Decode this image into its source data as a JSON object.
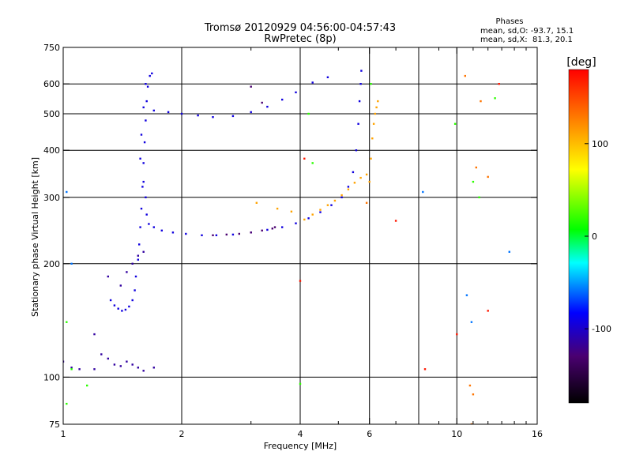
{
  "chart_data": {
    "type": "scatter",
    "title": "Tromsø 20120929 04:56:00-04:57:43",
    "subtitle": "RwPretec (8p)",
    "xlabel": "Frequency [MHz]",
    "ylabel": "Stationary phase Virtual Height [km]",
    "x_scale": "log",
    "y_scale": "log",
    "xlim": [
      1,
      16
    ],
    "ylim": [
      75,
      750
    ],
    "x_ticks": [
      1,
      2,
      4,
      6,
      10,
      16
    ],
    "x_tick_labels": [
      "1",
      "2",
      "4",
      "6",
      "10",
      "16"
    ],
    "x_grid_lines": [
      2,
      4,
      6,
      8,
      10
    ],
    "x_minor_ticks": [
      3,
      5,
      7,
      8,
      9,
      11,
      12,
      13,
      14,
      15
    ],
    "y_ticks": [
      75,
      100,
      200,
      300,
      400,
      500,
      600,
      750
    ],
    "y_tick_labels": [
      "75",
      "100",
      "200",
      "300",
      "400",
      "500",
      "600",
      "750"
    ],
    "y_grid_lines": [
      100,
      200,
      300,
      400,
      500,
      600
    ],
    "grid": true,
    "info_block": {
      "heading": "Phases",
      "line1": "mean, sd,O: -93.7, 15.1",
      "line2": "mean, sd,X:  81.3, 20.1"
    },
    "colorbar": {
      "label": "[deg]",
      "range": [
        -180,
        180
      ],
      "ticks": [
        100,
        0,
        -100
      ],
      "tick_labels": [
        "100",
        "0",
        "-100"
      ],
      "placement": "right",
      "colors": [
        "#000000",
        "#4a0070",
        "#0000ff",
        "#00ffff",
        "#00ff00",
        "#ffff00",
        "#ff8000",
        "#ff0000"
      ]
    },
    "series": [
      {
        "color_value": -95,
        "points": [
          [
            1.32,
            160
          ],
          [
            1.35,
            155
          ],
          [
            1.38,
            152
          ],
          [
            1.41,
            150
          ],
          [
            1.44,
            151
          ],
          [
            1.47,
            154
          ],
          [
            1.5,
            160
          ],
          [
            1.52,
            170
          ],
          [
            1.53,
            185
          ],
          [
            1.55,
            205
          ],
          [
            1.56,
            225
          ],
          [
            1.57,
            250
          ],
          [
            1.58,
            280
          ],
          [
            1.59,
            320
          ],
          [
            1.6,
            370
          ],
          [
            1.61,
            420
          ],
          [
            1.62,
            480
          ],
          [
            1.63,
            540
          ],
          [
            1.64,
            590
          ],
          [
            1.66,
            630
          ],
          [
            1.68,
            640
          ],
          [
            1.62,
            600
          ],
          [
            1.6,
            520
          ],
          [
            1.58,
            440
          ],
          [
            1.57,
            380
          ],
          [
            1.6,
            330
          ],
          [
            1.62,
            300
          ],
          [
            1.63,
            270
          ],
          [
            1.65,
            255
          ],
          [
            1.7,
            250
          ],
          [
            1.78,
            245
          ],
          [
            1.9,
            242
          ],
          [
            2.05,
            240
          ],
          [
            2.25,
            238
          ],
          [
            2.45,
            238
          ],
          [
            2.7,
            239
          ],
          [
            3.0,
            242
          ],
          [
            3.3,
            246
          ],
          [
            3.6,
            250
          ],
          [
            3.9,
            256
          ],
          [
            4.2,
            264
          ],
          [
            4.5,
            274
          ],
          [
            4.8,
            286
          ],
          [
            5.1,
            300
          ],
          [
            5.3,
            320
          ],
          [
            5.45,
            350
          ],
          [
            5.55,
            400
          ],
          [
            5.62,
            470
          ],
          [
            5.66,
            540
          ],
          [
            5.7,
            600
          ],
          [
            5.72,
            650
          ],
          [
            1.7,
            510
          ],
          [
            1.85,
            505
          ],
          [
            2.0,
            500
          ],
          [
            2.2,
            495
          ],
          [
            2.4,
            490
          ],
          [
            2.7,
            493
          ],
          [
            3.0,
            505
          ],
          [
            3.3,
            522
          ],
          [
            3.6,
            545
          ],
          [
            3.9,
            570
          ],
          [
            4.3,
            605
          ],
          [
            4.7,
            625
          ]
        ]
      },
      {
        "color_value": -115,
        "points": [
          [
            1.0,
            110
          ],
          [
            1.05,
            106
          ],
          [
            1.1,
            105
          ],
          [
            1.2,
            105
          ],
          [
            1.25,
            115
          ],
          [
            1.3,
            112
          ],
          [
            1.35,
            108
          ],
          [
            1.4,
            107
          ],
          [
            1.45,
            110
          ],
          [
            1.5,
            108
          ],
          [
            1.55,
            106
          ],
          [
            1.6,
            104
          ],
          [
            1.7,
            106
          ],
          [
            1.2,
            130
          ],
          [
            1.3,
            185
          ],
          [
            1.4,
            175
          ],
          [
            1.45,
            190
          ],
          [
            1.5,
            200
          ],
          [
            1.55,
            210
          ],
          [
            1.6,
            215
          ]
        ]
      },
      {
        "color_value": -130,
        "points": [
          [
            2.4,
            238
          ],
          [
            2.6,
            239
          ],
          [
            2.8,
            240
          ],
          [
            3.0,
            242
          ],
          [
            3.2,
            245
          ],
          [
            3.4,
            248
          ],
          [
            3.0,
            590
          ],
          [
            3.2,
            535
          ],
          [
            3.45,
            250
          ]
        ]
      },
      {
        "color_value": 110,
        "points": [
          [
            4.1,
            262
          ],
          [
            4.3,
            270
          ],
          [
            4.5,
            278
          ],
          [
            4.7,
            286
          ],
          [
            4.9,
            294
          ],
          [
            5.1,
            304
          ],
          [
            5.3,
            315
          ],
          [
            5.5,
            328
          ],
          [
            5.7,
            338
          ],
          [
            5.9,
            345
          ],
          [
            6.0,
            330
          ],
          [
            6.05,
            380
          ],
          [
            6.1,
            430
          ],
          [
            6.15,
            470
          ],
          [
            6.2,
            500
          ],
          [
            6.25,
            520
          ],
          [
            6.3,
            540
          ],
          [
            3.1,
            290
          ],
          [
            3.5,
            280
          ],
          [
            3.8,
            275
          ]
        ]
      },
      {
        "color_value": 130,
        "points": [
          [
            10.5,
            630
          ],
          [
            11.5,
            540
          ],
          [
            10.8,
            95
          ],
          [
            11.0,
            90
          ],
          [
            10.9,
            75
          ],
          [
            11.2,
            360
          ],
          [
            12.0,
            340
          ],
          [
            5.9,
            290
          ]
        ]
      },
      {
        "color_value": 20,
        "points": [
          [
            1.02,
            140
          ],
          [
            1.02,
            85
          ],
          [
            1.05,
            105
          ],
          [
            1.15,
            95
          ],
          [
            4.0,
            96
          ],
          [
            4.2,
            500
          ],
          [
            4.3,
            370
          ],
          [
            9.9,
            470
          ],
          [
            11.0,
            330
          ],
          [
            11.4,
            300
          ],
          [
            12.5,
            550
          ],
          [
            6.05,
            600
          ]
        ]
      },
      {
        "color_value": 170,
        "points": [
          [
            12.0,
            150
          ],
          [
            4.0,
            180
          ],
          [
            4.1,
            380
          ],
          [
            8.3,
            105
          ],
          [
            10.0,
            130
          ],
          [
            7.0,
            260
          ],
          [
            12.8,
            600
          ]
        ]
      },
      {
        "color_value": -60,
        "points": [
          [
            1.02,
            310
          ],
          [
            1.05,
            200
          ],
          [
            10.6,
            165
          ],
          [
            10.9,
            140
          ],
          [
            13.6,
            215
          ],
          [
            8.2,
            310
          ]
        ]
      }
    ]
  }
}
